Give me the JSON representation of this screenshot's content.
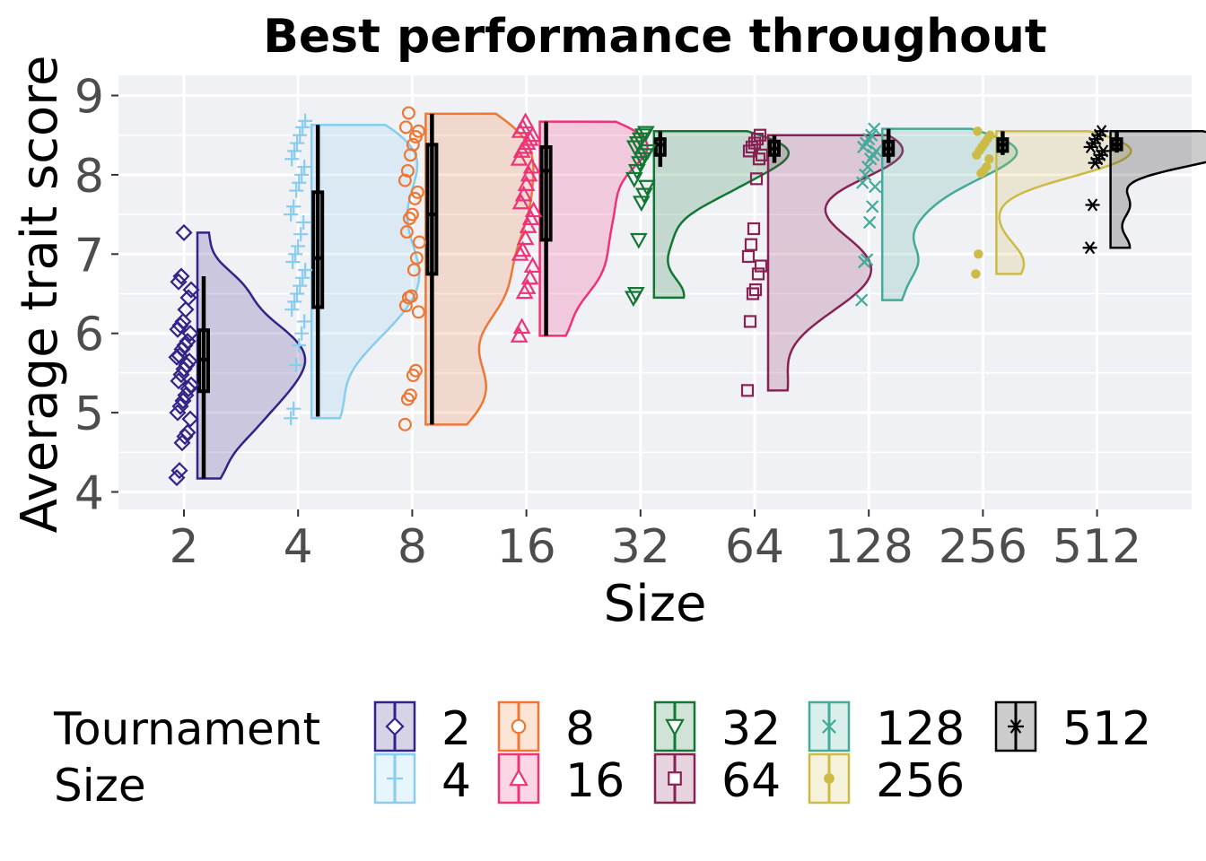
{
  "chart_data": {
    "type": "raincloud",
    "title": "Best performance throughout",
    "xlabel": "Size",
    "ylabel": "Average trait score",
    "ylim": [
      3.8,
      9.25
    ],
    "yticks": [
      4,
      5,
      6,
      7,
      8,
      9
    ],
    "grid": true,
    "legend_title": [
      "Tournament",
      "Size"
    ],
    "legend_position": "bottom",
    "categories": [
      "2",
      "4",
      "8",
      "16",
      "32",
      "64",
      "128",
      "256",
      "512"
    ],
    "series": [
      {
        "name": "2",
        "color": "#332288",
        "marker": "diamond",
        "box": {
          "min": 4.17,
          "q1": 5.27,
          "median": 5.67,
          "q3": 6.04,
          "max": 6.72
        },
        "density_max": 7.27,
        "points": [
          4.18,
          4.27,
          4.62,
          4.7,
          4.75,
          4.92,
          5.0,
          5.08,
          5.15,
          5.22,
          5.3,
          5.35,
          5.4,
          5.48,
          5.55,
          5.6,
          5.65,
          5.7,
          5.72,
          5.8,
          5.85,
          5.9,
          6.0,
          6.05,
          6.1,
          6.15,
          6.3,
          6.45,
          6.55,
          6.65,
          6.72,
          7.27
        ]
      },
      {
        "name": "4",
        "color": "#88CCEE",
        "marker": "plus",
        "box": {
          "min": 4.95,
          "q1": 6.33,
          "median": 6.95,
          "q3": 7.78,
          "max": 8.63
        },
        "density_max": 8.63,
        "points": [
          4.93,
          5.05,
          5.6,
          5.85,
          6.0,
          6.15,
          6.3,
          6.4,
          6.5,
          6.6,
          6.7,
          6.8,
          6.9,
          7.0,
          7.1,
          7.25,
          7.4,
          7.5,
          7.6,
          7.8,
          7.9,
          8.0,
          8.1,
          8.2,
          8.3,
          8.4,
          8.5,
          8.6,
          8.68
        ]
      },
      {
        "name": "8",
        "color": "#EE7733",
        "marker": "circle",
        "box": {
          "min": 4.85,
          "q1": 6.75,
          "median": 7.5,
          "q3": 8.38,
          "max": 8.77
        },
        "density_max": 8.77,
        "points": [
          4.85,
          5.17,
          5.22,
          5.47,
          5.53,
          6.27,
          6.35,
          6.45,
          6.47,
          6.8,
          6.95,
          7.15,
          7.28,
          7.45,
          7.5,
          7.7,
          7.78,
          7.93,
          8.05,
          8.25,
          8.38,
          8.48,
          8.55,
          8.6,
          8.78
        ]
      },
      {
        "name": "16",
        "color": "#EE3377",
        "marker": "triangle",
        "box": {
          "min": 5.97,
          "q1": 7.18,
          "median": 8.05,
          "q3": 8.35,
          "max": 8.67
        },
        "density_max": 8.67,
        "points": [
          5.97,
          6.08,
          6.52,
          6.58,
          6.7,
          6.85,
          7.0,
          7.05,
          7.2,
          7.35,
          7.45,
          7.55,
          7.65,
          7.75,
          7.88,
          8.0,
          8.1,
          8.2,
          8.3,
          8.35,
          8.4,
          8.45,
          8.5,
          8.55,
          8.6,
          8.67
        ]
      },
      {
        "name": "32",
        "color": "#117733",
        "marker": "triangle-down",
        "box": {
          "min": 8.1,
          "q1": 8.25,
          "median": 8.38,
          "q3": 8.45,
          "max": 8.55
        },
        "density_max": 8.55,
        "points": [
          6.45,
          6.5,
          7.18,
          7.65,
          7.75,
          7.85,
          7.95,
          8.05,
          8.15,
          8.2,
          8.25,
          8.3,
          8.35,
          8.4,
          8.45,
          8.5,
          8.53
        ]
      },
      {
        "name": "64",
        "color": "#882255",
        "marker": "square",
        "box": {
          "min": 8.15,
          "q1": 8.25,
          "median": 8.33,
          "q3": 8.42,
          "max": 8.5
        },
        "density_max": 8.5,
        "points": [
          5.28,
          6.15,
          6.5,
          6.55,
          6.75,
          6.85,
          6.97,
          7.12,
          7.32,
          7.95,
          8.2,
          8.25,
          8.3,
          8.35,
          8.4,
          8.45,
          8.5
        ]
      },
      {
        "name": "128",
        "color": "#44AA99",
        "marker": "x",
        "box": {
          "min": 8.15,
          "q1": 8.25,
          "median": 8.33,
          "q3": 8.42,
          "max": 8.58
        },
        "density_max": 8.58,
        "points": [
          6.42,
          6.9,
          6.93,
          7.4,
          7.6,
          7.85,
          7.9,
          8.0,
          8.1,
          8.2,
          8.25,
          8.3,
          8.35,
          8.4,
          8.45,
          8.5,
          8.58
        ]
      },
      {
        "name": "256",
        "color": "#CCBB44",
        "marker": "dot",
        "box": {
          "min": 8.25,
          "q1": 8.3,
          "median": 8.38,
          "q3": 8.45,
          "max": 8.55
        },
        "density_max": 8.55,
        "points": [
          6.75,
          7.0,
          8.02,
          8.05,
          8.1,
          8.2,
          8.25,
          8.3,
          8.35,
          8.4,
          8.45,
          8.5,
          8.55
        ]
      },
      {
        "name": "512",
        "color": "#000000",
        "marker": "asterisk",
        "box": {
          "min": 8.28,
          "q1": 8.32,
          "median": 8.38,
          "q3": 8.45,
          "max": 8.55
        },
        "density_max": 8.55,
        "points": [
          7.08,
          7.62,
          8.15,
          8.2,
          8.25,
          8.3,
          8.35,
          8.4,
          8.45,
          8.5,
          8.55
        ]
      }
    ]
  }
}
